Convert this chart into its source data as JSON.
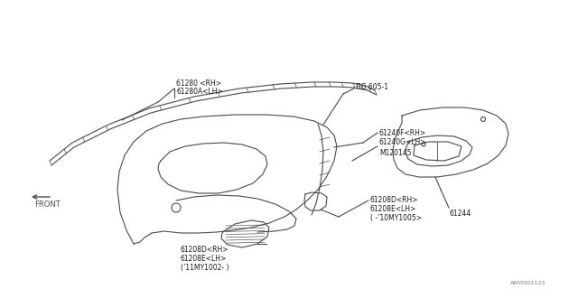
{
  "bg_color": "#ffffff",
  "line_color": "#4a4a4a",
  "text_color": "#1a1a1a",
  "fig_ref": "A605001123",
  "lw": 0.8,
  "labels": {
    "61280_rh": "61280 <RH>",
    "61280a_lh": "61280A<LH>",
    "fig605": "FIG.605-1",
    "61240f": "61240F<RH>",
    "61240g": "61240G<LH>",
    "m120145": "M120145",
    "61244": "61244",
    "61208d_rh1": "61208D<RH>",
    "61208e_lh1": "61208E<LH>",
    "suffix1": "( -’10MY1005>",
    "61208d_rh2": "61208D<RH>",
    "61208e_lh2": "61208E<LH>",
    "suffix2": "(’11MY1002- )",
    "front": "FRONT"
  }
}
